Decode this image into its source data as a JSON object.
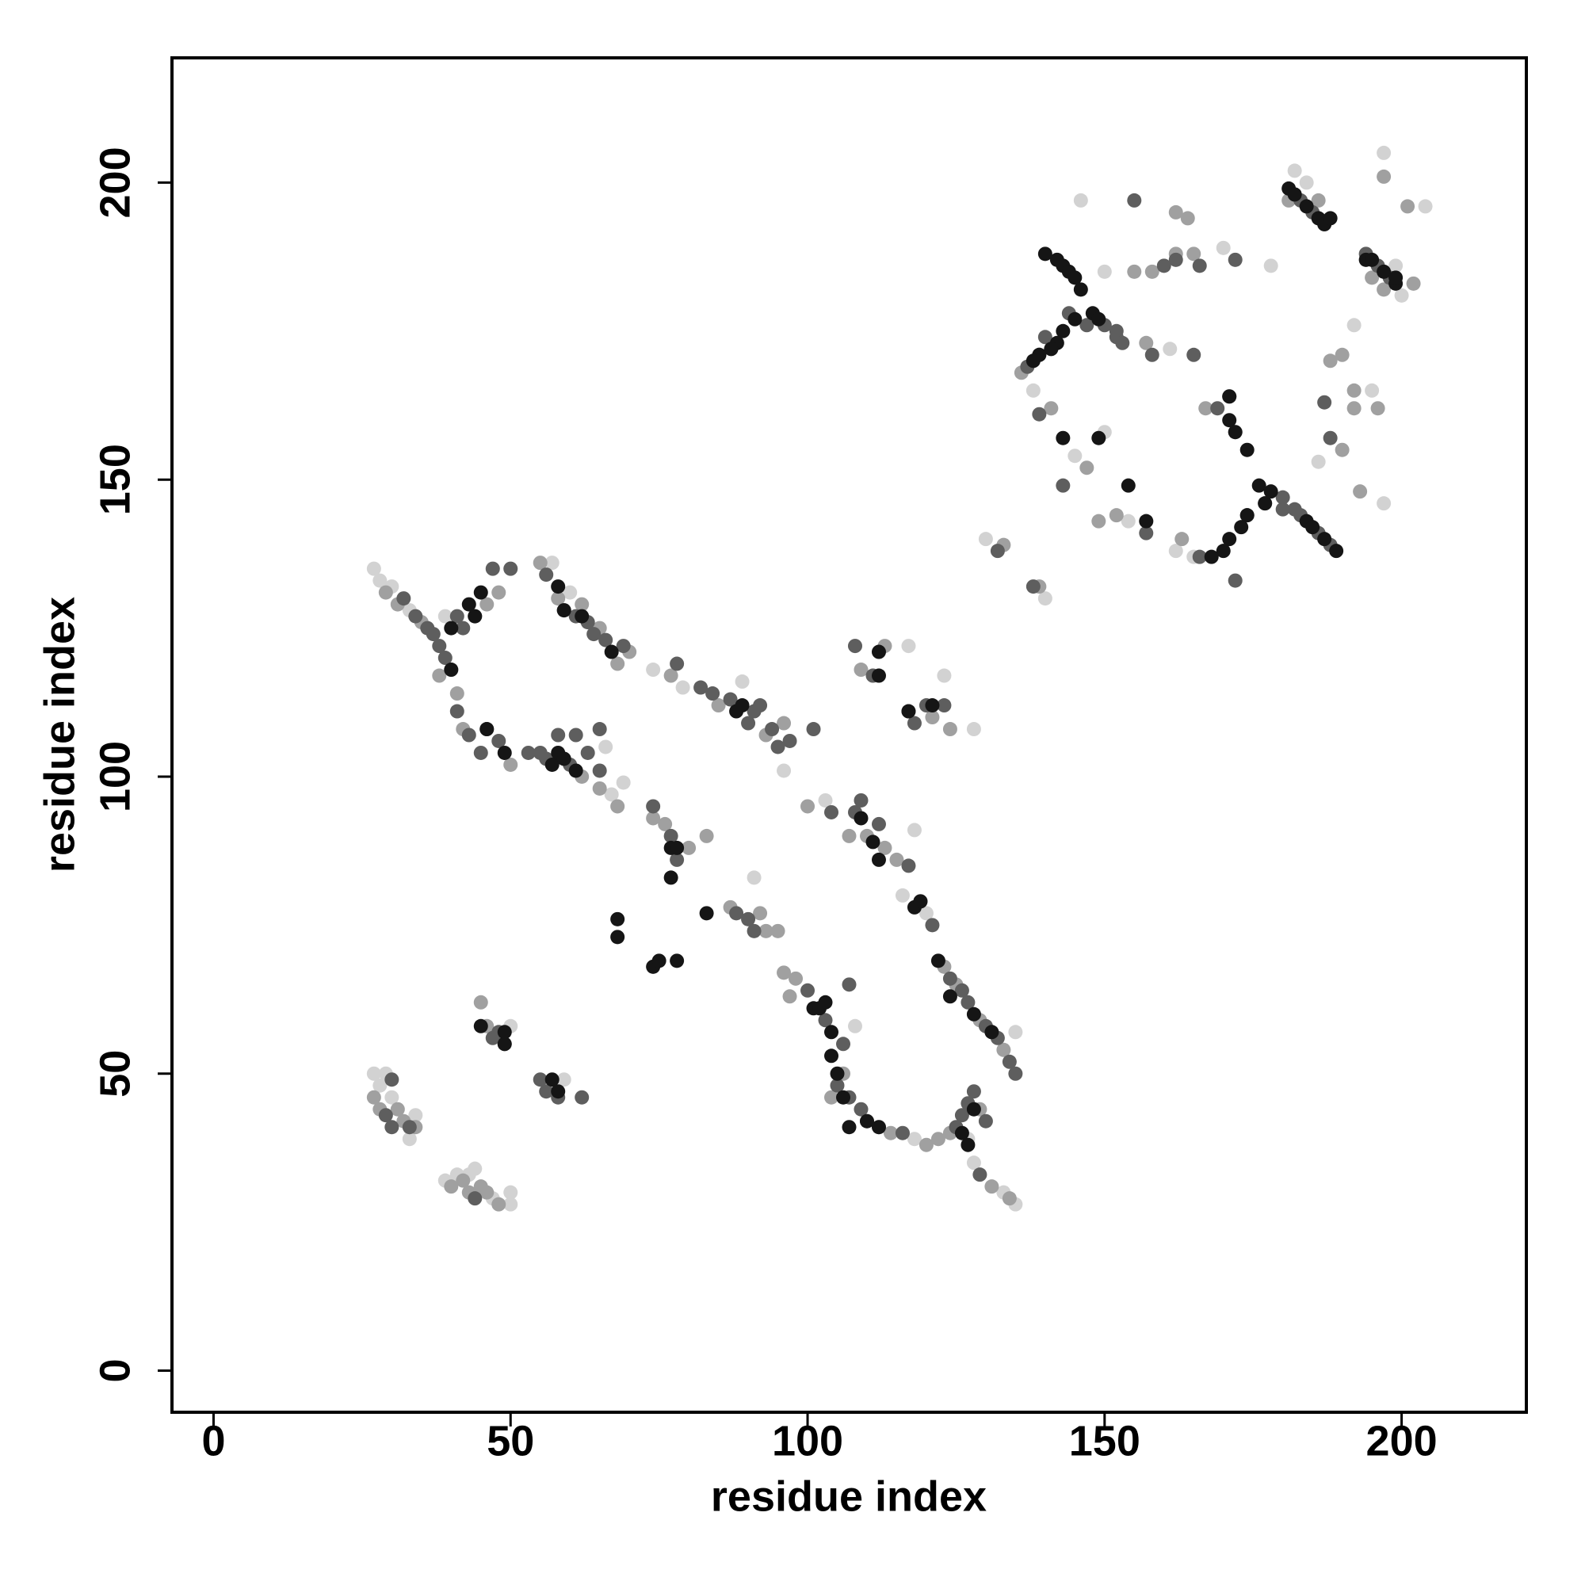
{
  "chart_data": {
    "type": "scatter",
    "x_label": "residue index",
    "y_label": "residue index",
    "xlim": [
      -7,
      221
    ],
    "ylim": [
      -7,
      221
    ],
    "xticks": [
      0,
      50,
      100,
      150,
      200
    ],
    "yticks": [
      0,
      50,
      100,
      150,
      200
    ],
    "grid": false,
    "series": [
      {
        "color": "#d2d2d2",
        "x": [
          27,
          28,
          30,
          33,
          39,
          27,
          29,
          28,
          30,
          33,
          34,
          39,
          41,
          43,
          44,
          47,
          50,
          50,
          50,
          59,
          57,
          60,
          58,
          66,
          69,
          67,
          74,
          79,
          89,
          96,
          91,
          108,
          117,
          123,
          128,
          108,
          103,
          118,
          116,
          120,
          122,
          128,
          135,
          127,
          128,
          133,
          135,
          118,
          146,
          150,
          138,
          145,
          150,
          154,
          165,
          130,
          140,
          170,
          182,
          184,
          197,
          204,
          195,
          192,
          186,
          197,
          200,
          178,
          170,
          199,
          161,
          162
        ],
        "values": [
          135,
          133,
          132,
          128,
          127,
          50,
          50,
          48,
          46,
          39,
          43,
          32,
          33,
          33,
          34,
          29,
          30,
          28,
          58,
          49,
          136,
          131,
          104,
          105,
          99,
          97,
          118,
          115,
          116,
          101,
          83,
          122,
          122,
          117,
          108,
          58,
          96,
          91,
          80,
          77,
          69,
          60,
          57,
          39,
          35,
          30,
          28,
          39,
          197,
          185,
          165,
          154,
          158,
          143,
          137,
          140,
          130,
          138,
          202,
          200,
          205,
          196,
          165,
          176,
          153,
          146,
          181,
          186,
          189,
          186,
          172,
          138
        ]
      },
      {
        "color": "#a0a0a0",
        "x": [
          29,
          31,
          35,
          38,
          40,
          46,
          48,
          27,
          28,
          31,
          32,
          34,
          40,
          42,
          43,
          45,
          46,
          48,
          45,
          46,
          55,
          58,
          62,
          65,
          68,
          70,
          41,
          42,
          50,
          61,
          62,
          65,
          68,
          77,
          85,
          93,
          96,
          74,
          76,
          80,
          83,
          87,
          92,
          93,
          95,
          100,
          107,
          110,
          113,
          115,
          123,
          125,
          129,
          131,
          133,
          98,
          96,
          97,
          104,
          106,
          112,
          114,
          120,
          122,
          124,
          129,
          131,
          134,
          109,
          113,
          121,
          124,
          138,
          136,
          141,
          147,
          152,
          163,
          133,
          139,
          157,
          167,
          172,
          181,
          186,
          195,
          197,
          202,
          201,
          197,
          192,
          196,
          192,
          188,
          190,
          190,
          193,
          164,
          162,
          162,
          165,
          158,
          155,
          149,
          157
        ],
        "values": [
          131,
          129,
          126,
          117,
          118,
          129,
          131,
          46,
          44,
          44,
          42,
          41,
          31,
          32,
          30,
          31,
          30,
          28,
          62,
          58,
          136,
          130,
          129,
          125,
          119,
          121,
          114,
          108,
          102,
          101,
          100,
          98,
          95,
          117,
          112,
          107,
          109,
          93,
          92,
          88,
          90,
          78,
          77,
          74,
          74,
          95,
          90,
          90,
          88,
          86,
          68,
          65,
          59,
          57,
          54,
          66,
          67,
          63,
          46,
          50,
          41,
          40,
          38,
          39,
          40,
          44,
          31,
          29,
          118,
          122,
          110,
          108,
          170,
          168,
          162,
          152,
          144,
          140,
          139,
          132,
          173,
          162,
          158,
          197,
          197,
          184,
          182,
          183,
          196,
          201,
          165,
          162,
          162,
          170,
          171,
          155,
          148,
          194,
          195,
          188,
          188,
          185,
          185,
          143,
          143
        ]
      },
      {
        "color": "#5e5e5e",
        "x": [
          32,
          34,
          36,
          37,
          38,
          39,
          41,
          42,
          44,
          47,
          50,
          30,
          29,
          30,
          33,
          44,
          47,
          48,
          49,
          56,
          58,
          62,
          55,
          56,
          59,
          61,
          63,
          64,
          66,
          69,
          41,
          43,
          45,
          46,
          48,
          53,
          55,
          56,
          60,
          63,
          65,
          65,
          61,
          58,
          78,
          82,
          84,
          87,
          90,
          91,
          92,
          94,
          95,
          97,
          101,
          74,
          77,
          78,
          88,
          90,
          91,
          104,
          108,
          109,
          112,
          117,
          119,
          121,
          124,
          126,
          127,
          130,
          132,
          134,
          135,
          100,
          103,
          106,
          105,
          107,
          109,
          110,
          116,
          125,
          126,
          127,
          128,
          130,
          129,
          107,
          108,
          111,
          117,
          118,
          120,
          123,
          141,
          137,
          139,
          140,
          144,
          147,
          150,
          152,
          143,
          139,
          157,
          132,
          138,
          152,
          153,
          158,
          165,
          171,
          169,
          177,
          180,
          183,
          186,
          188,
          180,
          174,
          166,
          172,
          182,
          183,
          185,
          187,
          194,
          196,
          198,
          188,
          187,
          182,
          166,
          162,
          172,
          155,
          160
        ],
        "values": [
          130,
          127,
          125,
          124,
          122,
          120,
          127,
          125,
          127,
          135,
          135,
          49,
          43,
          41,
          41,
          29,
          56,
          57,
          55,
          47,
          46,
          46,
          49,
          134,
          128,
          127,
          126,
          124,
          123,
          122,
          111,
          107,
          104,
          108,
          106,
          104,
          104,
          103,
          102,
          104,
          101,
          108,
          107,
          107,
          119,
          115,
          114,
          113,
          109,
          111,
          112,
          108,
          105,
          106,
          108,
          95,
          90,
          86,
          77,
          76,
          74,
          94,
          94,
          96,
          92,
          85,
          79,
          75,
          66,
          64,
          62,
          58,
          56,
          52,
          50,
          64,
          59,
          55,
          48,
          46,
          44,
          42,
          40,
          41,
          43,
          45,
          47,
          42,
          33,
          65,
          122,
          117,
          111,
          109,
          112,
          112,
          172,
          169,
          171,
          174,
          178,
          176,
          176,
          174,
          149,
          161,
          141,
          138,
          132,
          175,
          173,
          171,
          171,
          164,
          162,
          146,
          147,
          144,
          141,
          139,
          145,
          144,
          137,
          133,
          198,
          197,
          195,
          193,
          188,
          186,
          184,
          157,
          163,
          145,
          186,
          187,
          187,
          197,
          186
        ]
      },
      {
        "color": "#151515",
        "x": [
          40,
          43,
          44,
          45,
          40,
          46,
          49,
          57,
          58,
          59,
          61,
          58,
          59,
          62,
          67,
          88,
          89,
          77,
          78,
          77,
          83,
          68,
          68,
          74,
          75,
          78,
          109,
          111,
          112,
          118,
          119,
          122,
          124,
          128,
          131,
          101,
          102,
          103,
          104,
          104,
          105,
          106,
          107,
          110,
          112,
          126,
          127,
          128,
          57,
          58,
          49,
          49,
          45,
          112,
          112,
          117,
          121,
          140,
          142,
          143,
          144,
          145,
          146,
          148,
          149,
          145,
          143,
          142,
          139,
          138,
          141,
          143,
          149,
          157,
          154,
          171,
          172,
          171,
          174,
          176,
          177,
          178,
          171,
          173,
          170,
          168,
          174,
          184,
          185,
          187,
          189,
          181,
          182,
          184,
          186,
          187,
          188,
          194,
          195,
          197,
          199,
          199
        ],
        "values": [
          125,
          129,
          127,
          131,
          118,
          108,
          104,
          102,
          104,
          103,
          101,
          132,
          128,
          127,
          121,
          111,
          112,
          88,
          88,
          83,
          77,
          76,
          73,
          68,
          69,
          69,
          93,
          89,
          86,
          78,
          79,
          69,
          63,
          60,
          57,
          61,
          61,
          62,
          57,
          53,
          50,
          46,
          41,
          42,
          41,
          40,
          38,
          44,
          49,
          47,
          57,
          55,
          58,
          121,
          117,
          111,
          112,
          188,
          187,
          186,
          185,
          184,
          182,
          178,
          177,
          177,
          175,
          173,
          171,
          170,
          172,
          157,
          157,
          143,
          149,
          160,
          158,
          164,
          155,
          149,
          146,
          148,
          140,
          142,
          138,
          137,
          144,
          143,
          142,
          140,
          138,
          199,
          198,
          196,
          194,
          193,
          194,
          187,
          187,
          185,
          183,
          184
        ]
      }
    ]
  }
}
